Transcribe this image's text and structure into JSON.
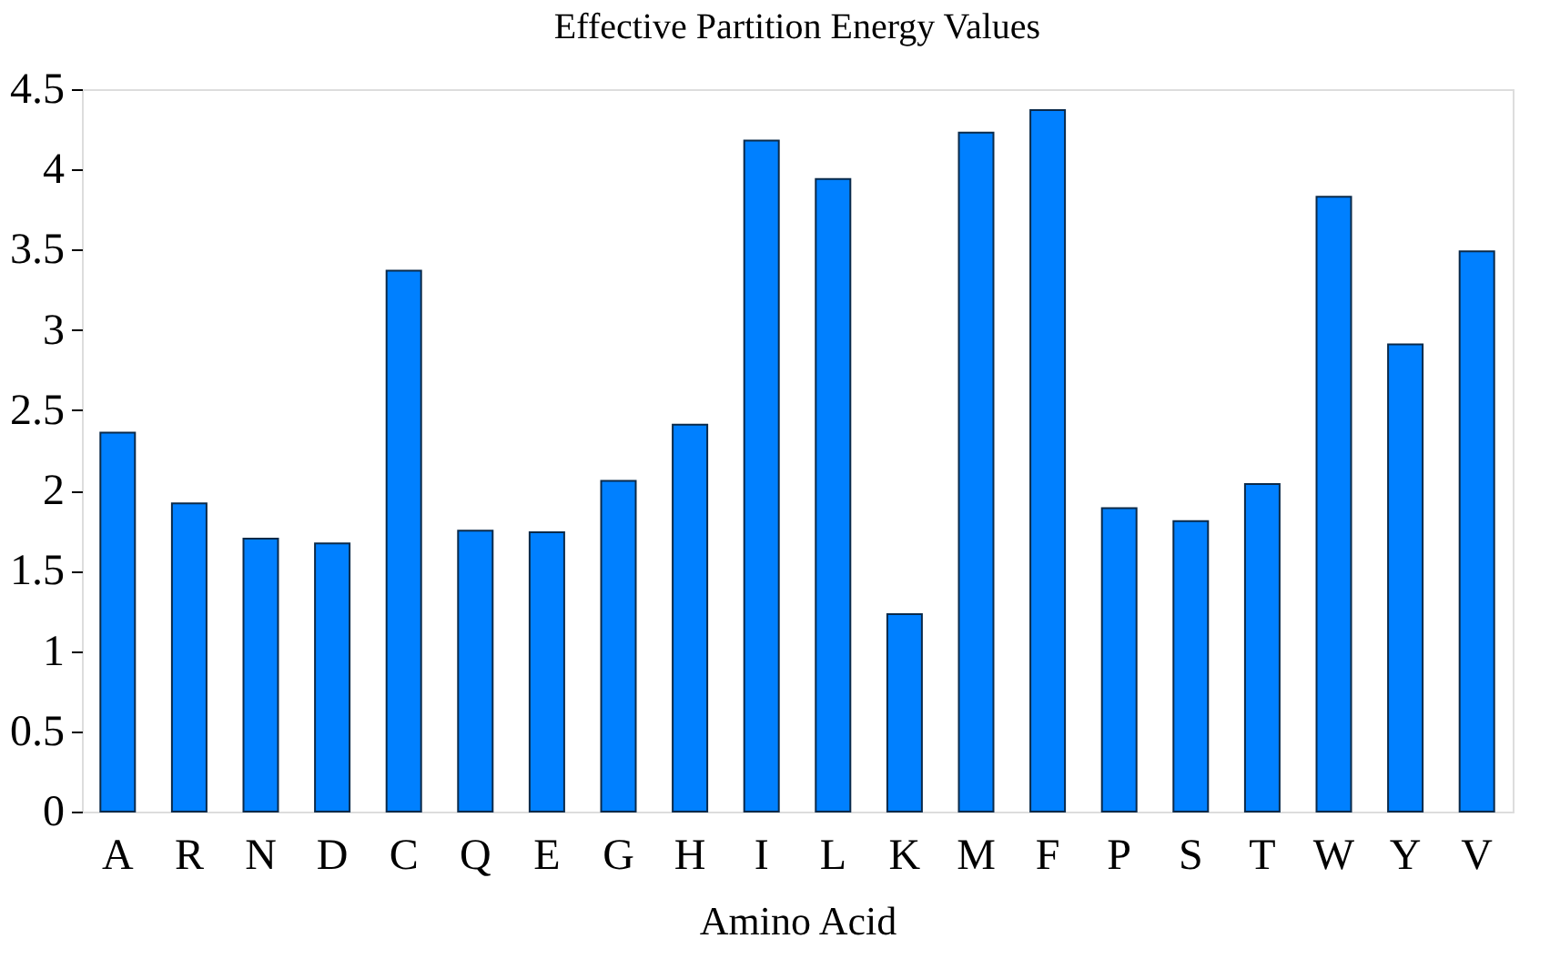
{
  "chart_data": {
    "type": "bar",
    "title": "Effective Partition Energy Values",
    "xlabel": "Amino Acid",
    "categories": [
      "A",
      "R",
      "N",
      "D",
      "C",
      "Q",
      "E",
      "G",
      "H",
      "I",
      "L",
      "K",
      "M",
      "F",
      "P",
      "S",
      "T",
      "W",
      "Y",
      "V"
    ],
    "values": [
      2.36,
      1.92,
      1.7,
      1.67,
      3.37,
      1.75,
      1.74,
      2.06,
      2.41,
      4.18,
      3.94,
      1.23,
      4.23,
      4.37,
      1.89,
      1.81,
      2.04,
      3.83,
      2.91,
      3.49
    ],
    "color": "#0080ff",
    "ylim": [
      0,
      4.5
    ],
    "yticks": [
      0,
      0.5,
      1,
      1.5,
      2,
      2.5,
      3,
      3.5,
      4,
      4.5
    ],
    "grid": false
  }
}
